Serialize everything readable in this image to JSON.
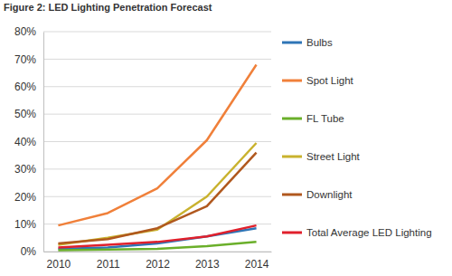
{
  "chart_data": {
    "type": "line",
    "title": "Figure 2: LED Lighting Penetration Forecast",
    "categories": [
      "2010",
      "2011",
      "2012",
      "2013",
      "2014"
    ],
    "series": [
      {
        "name": "Bulbs",
        "color": "#2e75b6",
        "values": [
          1,
          1.5,
          3,
          5.5,
          8.5
        ]
      },
      {
        "name": "Spot Light",
        "color": "#f0803a",
        "values": [
          9.5,
          14,
          23,
          40.5,
          68
        ]
      },
      {
        "name": "FL Tube",
        "color": "#6aaf2a",
        "values": [
          0.5,
          0.7,
          1,
          2,
          3.5
        ]
      },
      {
        "name": "Street Light",
        "color": "#c9b22e",
        "values": [
          2.5,
          5,
          8,
          20,
          39.5
        ]
      },
      {
        "name": "Downlight",
        "color": "#b0581e",
        "values": [
          3,
          4.5,
          8.5,
          16.5,
          36
        ]
      },
      {
        "name": "Total Average LED Lighting",
        "color": "#e0202c",
        "values": [
          1.5,
          2.5,
          3.5,
          5.5,
          9.5
        ]
      }
    ],
    "ylim": [
      0,
      80
    ],
    "yticks": [
      {
        "value": 0,
        "label": "0%"
      },
      {
        "value": 10,
        "label": "10%"
      },
      {
        "value": 20,
        "label": "20%"
      },
      {
        "value": 30,
        "label": "30%"
      },
      {
        "value": 40,
        "label": "40%"
      },
      {
        "value": 50,
        "label": "50%"
      },
      {
        "value": 60,
        "label": "60%"
      },
      {
        "value": 70,
        "label": "70%"
      },
      {
        "value": 80,
        "label": "80%"
      }
    ],
    "grid": true,
    "legend": "right"
  }
}
